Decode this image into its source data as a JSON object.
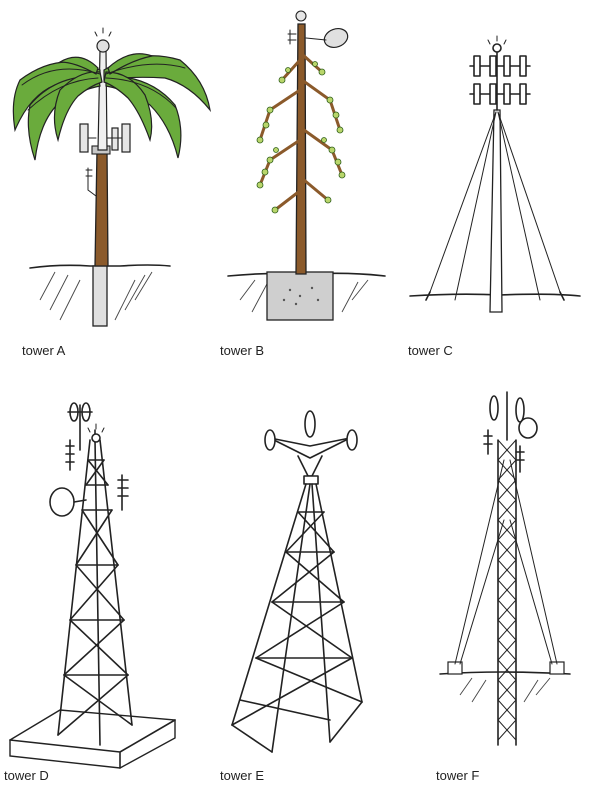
{
  "towers": [
    {
      "id": "A",
      "label": "tower A",
      "style": "palm-tree",
      "colors": {
        "trunk": "#8b5a2b",
        "leaves": "#6aab3c",
        "pole": "#e8e8e8"
      }
    },
    {
      "id": "B",
      "label": "tower B",
      "style": "pine-tree",
      "colors": {
        "trunk": "#8b5a2b",
        "buds": "#b9d66b",
        "base": "#cfcfcf"
      }
    },
    {
      "id": "C",
      "label": "tower C",
      "style": "guyed-monopole"
    },
    {
      "id": "D",
      "label": "tower D",
      "style": "lattice-on-pad"
    },
    {
      "id": "E",
      "label": "tower E",
      "style": "four-leg-lattice"
    },
    {
      "id": "F",
      "label": "tower F",
      "style": "guyed-lattice-mast"
    }
  ]
}
